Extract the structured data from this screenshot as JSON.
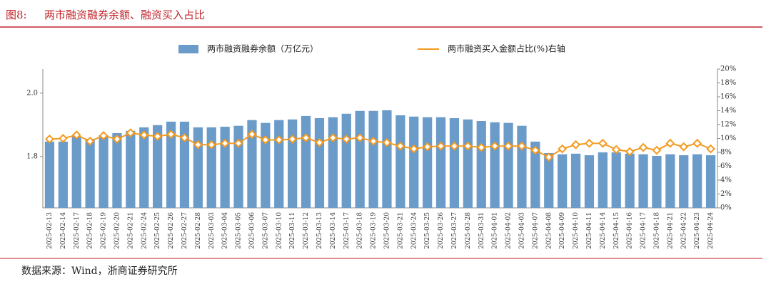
{
  "chart_data": {
    "type": "bar-line",
    "figure_label": "图8:",
    "title": "两市融资融券余额、融资买入占比",
    "source": "数据来源：Wind，浙商证券研究所",
    "categories": [
      "2025-02-13",
      "2025-02-14",
      "2025-02-17",
      "2025-02-18",
      "2025-02-19",
      "2025-02-20",
      "2025-02-21",
      "2025-02-24",
      "2025-02-25",
      "2025-02-26",
      "2025-02-27",
      "2025-02-28",
      "2025-03-03",
      "2025-03-04",
      "2025-03-05",
      "2025-03-06",
      "2025-03-07",
      "2025-03-10",
      "2025-03-11",
      "2025-03-12",
      "2025-03-13",
      "2025-03-14",
      "2025-03-17",
      "2025-03-18",
      "2025-03-19",
      "2025-03-20",
      "2025-03-21",
      "2025-03-24",
      "2025-03-25",
      "2025-03-26",
      "2025-03-27",
      "2025-03-28",
      "2025-03-31",
      "2025-04-01",
      "2025-04-02",
      "2025-04-03",
      "2025-04-07",
      "2025-04-08",
      "2025-04-09",
      "2025-04-10",
      "2025-04-11",
      "2025-04-14",
      "2025-04-15",
      "2025-04-16",
      "2025-04-17",
      "2025-04-18",
      "2025-04-21",
      "2025-04-22",
      "2025-04-23",
      "2025-04-24"
    ],
    "series": [
      {
        "name": "两市融资融券余额（万亿元）",
        "type": "bar",
        "color": "#6b9bc9",
        "values": [
          1.847,
          1.847,
          1.863,
          1.856,
          1.867,
          1.874,
          1.881,
          1.892,
          1.899,
          1.91,
          1.91,
          1.892,
          1.892,
          1.894,
          1.897,
          1.915,
          1.906,
          1.915,
          1.917,
          1.928,
          1.921,
          1.924,
          1.935,
          1.944,
          1.944,
          1.946,
          1.93,
          1.926,
          1.924,
          1.924,
          1.921,
          1.917,
          1.912,
          1.908,
          1.906,
          1.897,
          1.847,
          1.811,
          1.807,
          1.809,
          1.804,
          1.813,
          1.813,
          1.809,
          1.807,
          1.802,
          1.807,
          1.804,
          1.807,
          1.804
        ]
      },
      {
        "name": "两市融资买入金额占比(%)右轴",
        "type": "line",
        "axis": "y2",
        "color": "#f39a1f",
        "values": [
          9.9,
          10.0,
          10.5,
          9.6,
          10.4,
          9.9,
          10.8,
          10.5,
          10.3,
          10.6,
          10.1,
          9.1,
          9.1,
          9.3,
          9.3,
          10.6,
          9.8,
          9.8,
          9.9,
          10.1,
          9.4,
          10.1,
          9.9,
          10.1,
          9.6,
          9.4,
          8.9,
          8.5,
          8.8,
          8.9,
          8.9,
          8.9,
          8.7,
          8.9,
          8.9,
          8.9,
          8.3,
          7.3,
          8.5,
          9.1,
          9.3,
          9.3,
          8.4,
          8.1,
          8.7,
          8.3,
          9.3,
          8.8,
          9.3,
          8.5
        ]
      }
    ],
    "ylim": [
      1.638,
      2.076
    ],
    "yticks": [
      1.8,
      {
        "value": 2,
        "label": "2.0"
      }
    ],
    "y2lim": [
      0,
      20
    ],
    "y2ticks": [
      {
        "value": 0,
        "label": "0%"
      },
      {
        "value": 2,
        "label": "2%"
      },
      {
        "value": 4,
        "label": "4%"
      },
      {
        "value": 6,
        "label": "6%"
      },
      {
        "value": 8,
        "label": "8%"
      },
      {
        "value": 10,
        "label": "10%"
      },
      {
        "value": 12,
        "label": "12%"
      },
      {
        "value": 14,
        "label": "14%"
      },
      {
        "value": 16,
        "label": "16%"
      },
      {
        "value": 18,
        "label": "18%"
      },
      {
        "value": 20,
        "label": "20%"
      }
    ],
    "grid": false
  }
}
